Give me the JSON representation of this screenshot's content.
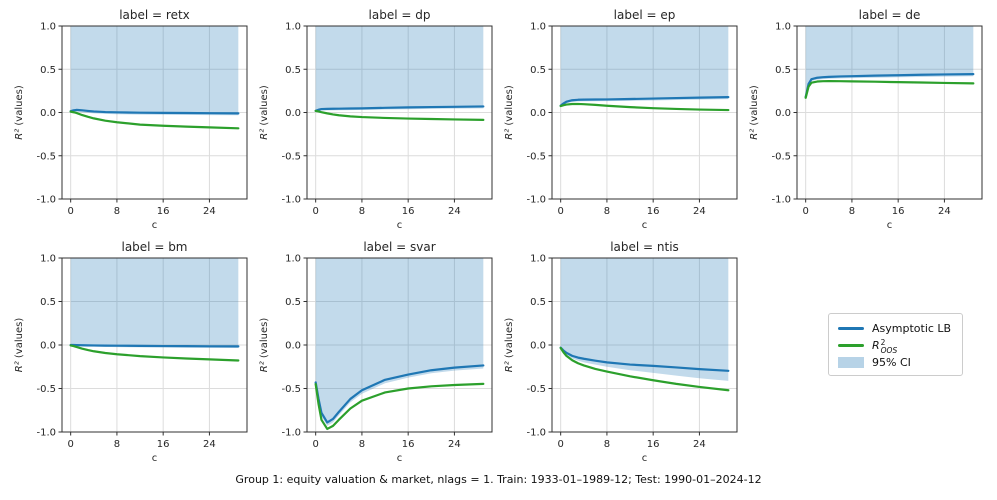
{
  "figure": {
    "caption": "Group 1: equity valuation & market, nlags = 1. Train: 1933-01–1989-12; Test: 1990-01–2024-12",
    "colors": {
      "lb": "#1f77b4",
      "oos": "#2ca02c",
      "ci_fill": "#1f77b4",
      "ci_opacity": 0.27,
      "grid": "#dcdcdc",
      "spine": "#303030",
      "text": "#262626"
    }
  },
  "legend": {
    "entries": [
      {
        "label": "Asymptotic LB",
        "type": "line",
        "color": "#1f77b4"
      },
      {
        "base": "R",
        "sup": "2",
        "sub": "OOS",
        "type": "line",
        "color": "#2ca02c"
      },
      {
        "label": "95% CI",
        "type": "patch",
        "color": "#1f77b4"
      }
    ]
  },
  "chart_data": {
    "type": "line",
    "xlabel": "c",
    "ylabel_math": "R²",
    "ylabel_text": "(values)",
    "xlim": [
      -1.5,
      30.5
    ],
    "ylim": [
      -1,
      1
    ],
    "xticks": [
      0,
      8,
      16,
      24
    ],
    "yticks": [
      1.0,
      0.5,
      0.0,
      -0.5,
      -1.0
    ],
    "x": [
      0,
      0.5,
      1,
      2,
      3,
      4,
      6,
      8,
      12,
      16,
      20,
      24,
      29
    ],
    "ci_upper": 1.0,
    "legend_position": "lower-right-slot",
    "grid": true,
    "panels": [
      {
        "id": "retx",
        "title": "label = retx",
        "lb": [
          0.015,
          0.025,
          0.03,
          0.025,
          0.018,
          0.012,
          0.005,
          0.002,
          -0.002,
          -0.004,
          -0.006,
          -0.008,
          -0.01
        ],
        "oos": [
          0.01,
          0.003,
          -0.005,
          -0.03,
          -0.05,
          -0.068,
          -0.095,
          -0.113,
          -0.14,
          -0.153,
          -0.163,
          -0.172,
          -0.183
        ],
        "ci_lower": [
          -0.005,
          0.005,
          0.01,
          0.003,
          -0.004,
          -0.01,
          -0.016,
          -0.02,
          -0.024,
          -0.026,
          -0.028,
          -0.03,
          -0.032
        ]
      },
      {
        "id": "dp",
        "title": "label = dp",
        "lb": [
          0.02,
          0.032,
          0.04,
          0.042,
          0.043,
          0.044,
          0.046,
          0.048,
          0.054,
          0.059,
          0.063,
          0.066,
          0.07
        ],
        "oos": [
          0.018,
          0.012,
          0.004,
          -0.01,
          -0.022,
          -0.032,
          -0.045,
          -0.053,
          -0.063,
          -0.07,
          -0.075,
          -0.08,
          -0.085
        ],
        "ci_lower": [
          0.0,
          0.014,
          0.022,
          0.024,
          0.025,
          0.026,
          0.028,
          0.03,
          0.034,
          0.038,
          0.042,
          0.045,
          0.048
        ]
      },
      {
        "id": "ep",
        "title": "label = ep",
        "lb": [
          0.08,
          0.105,
          0.125,
          0.142,
          0.147,
          0.149,
          0.15,
          0.151,
          0.156,
          0.161,
          0.167,
          0.172,
          0.178
        ],
        "oos": [
          0.075,
          0.085,
          0.092,
          0.098,
          0.099,
          0.096,
          0.088,
          0.078,
          0.062,
          0.05,
          0.041,
          0.034,
          0.028
        ],
        "ci_lower": [
          0.06,
          0.087,
          0.107,
          0.122,
          0.127,
          0.129,
          0.13,
          0.131,
          0.135,
          0.139,
          0.144,
          0.149,
          0.154
        ]
      },
      {
        "id": "de",
        "title": "label = de",
        "lb": [
          0.18,
          0.33,
          0.385,
          0.402,
          0.408,
          0.412,
          0.417,
          0.42,
          0.426,
          0.431,
          0.436,
          0.44,
          0.444
        ],
        "oos": [
          0.17,
          0.3,
          0.345,
          0.358,
          0.362,
          0.363,
          0.362,
          0.36,
          0.356,
          0.351,
          0.347,
          0.342,
          0.337
        ],
        "ci_lower": [
          0.16,
          0.31,
          0.363,
          0.38,
          0.386,
          0.39,
          0.394,
          0.397,
          0.402,
          0.407,
          0.411,
          0.415,
          0.419
        ]
      },
      {
        "id": "bm",
        "title": "label = bm",
        "lb": [
          0.0,
          0.0,
          -0.001,
          -0.003,
          -0.004,
          -0.005,
          -0.007,
          -0.008,
          -0.01,
          -0.012,
          -0.013,
          -0.015,
          -0.016
        ],
        "oos": [
          -0.005,
          -0.012,
          -0.022,
          -0.042,
          -0.058,
          -0.072,
          -0.092,
          -0.106,
          -0.128,
          -0.143,
          -0.155,
          -0.165,
          -0.178
        ],
        "ci_lower": [
          -0.014,
          -0.014,
          -0.015,
          -0.017,
          -0.019,
          -0.02,
          -0.022,
          -0.024,
          -0.027,
          -0.029,
          -0.031,
          -0.033,
          -0.035
        ]
      },
      {
        "id": "svar",
        "title": "label = svar",
        "lb": [
          -0.43,
          -0.62,
          -0.78,
          -0.89,
          -0.85,
          -0.77,
          -0.62,
          -0.52,
          -0.4,
          -0.34,
          -0.29,
          -0.26,
          -0.235
        ],
        "oos": [
          -0.45,
          -0.68,
          -0.86,
          -0.965,
          -0.93,
          -0.86,
          -0.73,
          -0.64,
          -0.545,
          -0.5,
          -0.475,
          -0.46,
          -0.447
        ],
        "ci_lower": [
          -0.47,
          -0.66,
          -0.82,
          -0.93,
          -0.89,
          -0.81,
          -0.66,
          -0.56,
          -0.44,
          -0.375,
          -0.325,
          -0.295,
          -0.27
        ]
      },
      {
        "id": "ntis",
        "title": "label = ntis",
        "lb": [
          -0.03,
          -0.065,
          -0.09,
          -0.125,
          -0.145,
          -0.158,
          -0.18,
          -0.2,
          -0.225,
          -0.24,
          -0.258,
          -0.277,
          -0.297
        ],
        "oos": [
          -0.035,
          -0.085,
          -0.125,
          -0.175,
          -0.21,
          -0.235,
          -0.275,
          -0.305,
          -0.36,
          -0.405,
          -0.447,
          -0.482,
          -0.52
        ],
        "ci_lower": [
          -0.045,
          -0.085,
          -0.115,
          -0.155,
          -0.18,
          -0.2,
          -0.225,
          -0.25,
          -0.29,
          -0.32,
          -0.352,
          -0.382,
          -0.412
        ]
      }
    ]
  }
}
